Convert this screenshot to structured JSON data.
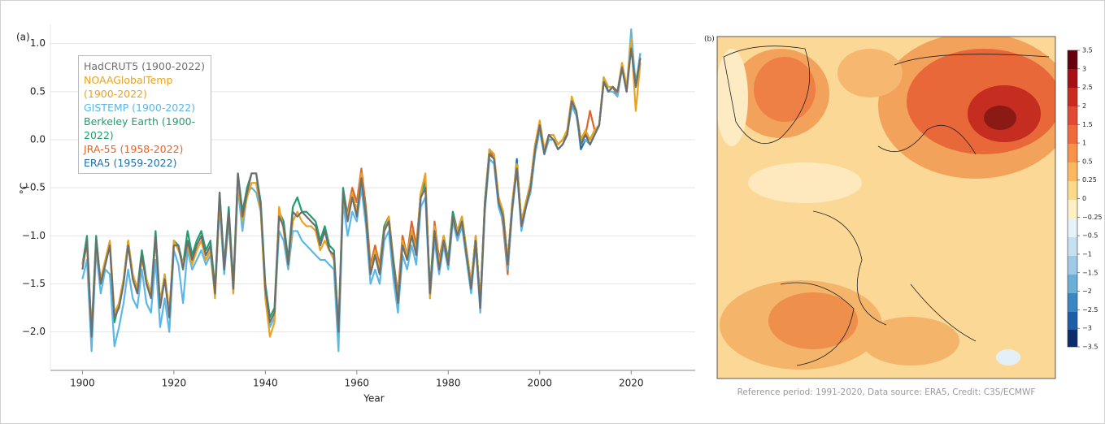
{
  "chart_data": {
    "type": "line",
    "panel_label": "(a)",
    "xlabel": "Year",
    "ylabel": "°C",
    "x": [
      1900,
      1901,
      1902,
      1903,
      1904,
      1905,
      1906,
      1907,
      1908,
      1909,
      1910,
      1911,
      1912,
      1913,
      1914,
      1915,
      1916,
      1917,
      1918,
      1919,
      1920,
      1921,
      1922,
      1923,
      1924,
      1925,
      1926,
      1927,
      1928,
      1929,
      1930,
      1931,
      1932,
      1933,
      1934,
      1935,
      1936,
      1937,
      1938,
      1939,
      1940,
      1941,
      1942,
      1943,
      1944,
      1945,
      1946,
      1947,
      1948,
      1949,
      1950,
      1951,
      1952,
      1953,
      1954,
      1955,
      1956,
      1957,
      1958,
      1959,
      1960,
      1961,
      1962,
      1963,
      1964,
      1965,
      1966,
      1967,
      1968,
      1969,
      1970,
      1971,
      1972,
      1973,
      1974,
      1975,
      1976,
      1977,
      1978,
      1979,
      1980,
      1981,
      1982,
      1983,
      1984,
      1985,
      1986,
      1987,
      1988,
      1989,
      1990,
      1991,
      1992,
      1993,
      1994,
      1995,
      1996,
      1997,
      1998,
      1999,
      2000,
      2001,
      2002,
      2003,
      2004,
      2005,
      2006,
      2007,
      2008,
      2009,
      2010,
      2011,
      2012,
      2013,
      2014,
      2015,
      2016,
      2017,
      2018,
      2019,
      2020,
      2021,
      2022
    ],
    "series": [
      {
        "name": "HadCRUT5 (1900-2022)",
        "color": "#6d6e70",
        "values": [
          -1.35,
          -1.05,
          -2.05,
          -1.05,
          -1.5,
          -1.3,
          -1.1,
          -1.85,
          -1.75,
          -1.5,
          -1.1,
          -1.45,
          -1.6,
          -1.2,
          -1.5,
          -1.65,
          -1.0,
          -1.75,
          -1.45,
          -1.85,
          -1.1,
          -1.1,
          -1.35,
          -1.05,
          -1.25,
          -1.1,
          -1.0,
          -1.2,
          -1.1,
          -1.6,
          -0.55,
          -1.35,
          -0.75,
          -1.55,
          -0.35,
          -0.8,
          -0.55,
          -0.35,
          -0.35,
          -0.7,
          -1.55,
          -1.9,
          -1.8,
          -0.8,
          -0.9,
          -1.3,
          -0.75,
          -0.8,
          -0.75,
          -0.8,
          -0.85,
          -0.9,
          -1.1,
          -0.95,
          -1.15,
          -1.2,
          -2.0,
          -0.55,
          -0.85,
          -0.6,
          -0.8,
          -0.4,
          -0.8,
          -1.4,
          -1.2,
          -1.4,
          -0.95,
          -0.85,
          -1.3,
          -1.7,
          -1.1,
          -1.25,
          -1.0,
          -1.2,
          -0.6,
          -0.5,
          -1.6,
          -0.95,
          -1.35,
          -1.05,
          -1.3,
          -0.8,
          -1.0,
          -0.85,
          -1.2,
          -1.55,
          -1.05,
          -1.75,
          -0.7,
          -0.15,
          -0.2,
          -0.65,
          -0.8,
          -1.3,
          -0.7,
          -0.3,
          -0.9,
          -0.7,
          -0.5,
          -0.1,
          0.15,
          -0.15,
          0.05,
          0.0,
          -0.1,
          -0.05,
          0.05,
          0.4,
          0.3,
          -0.05,
          0.05,
          -0.05,
          0.05,
          0.15,
          0.6,
          0.5,
          0.55,
          0.5,
          0.75,
          0.5,
          0.95,
          0.55,
          0.85
        ]
      },
      {
        "name": "NOAAGlobalTemp (1900-2022)",
        "color": "#e8a321",
        "values": [
          -1.3,
          -1.1,
          -2.0,
          -1.1,
          -1.45,
          -1.25,
          -1.05,
          -1.8,
          -1.7,
          -1.45,
          -1.05,
          -1.4,
          -1.55,
          -1.25,
          -1.45,
          -1.6,
          -1.05,
          -1.7,
          -1.4,
          -1.8,
          -1.05,
          -1.15,
          -1.3,
          -1.1,
          -1.3,
          -1.15,
          -1.05,
          -1.25,
          -1.15,
          -1.65,
          -0.65,
          -1.3,
          -0.8,
          -1.6,
          -0.4,
          -0.85,
          -0.6,
          -0.45,
          -0.45,
          -0.75,
          -1.65,
          -2.05,
          -1.9,
          -0.7,
          -0.95,
          -1.3,
          -0.85,
          -0.75,
          -0.85,
          -0.9,
          -0.9,
          -0.95,
          -1.15,
          -1.05,
          -1.15,
          -1.25,
          -1.95,
          -0.6,
          -0.8,
          -0.55,
          -0.75,
          -0.35,
          -0.8,
          -1.35,
          -1.15,
          -1.35,
          -0.95,
          -0.8,
          -1.3,
          -1.65,
          -1.05,
          -1.2,
          -0.95,
          -1.15,
          -0.55,
          -0.35,
          -1.65,
          -0.9,
          -1.3,
          -1.0,
          -1.3,
          -0.8,
          -0.95,
          -0.8,
          -1.15,
          -1.5,
          -1.0,
          -1.7,
          -0.7,
          -0.1,
          -0.15,
          -0.6,
          -0.75,
          -1.25,
          -0.65,
          -0.25,
          -0.85,
          -0.65,
          -0.45,
          -0.05,
          0.2,
          -0.1,
          0.05,
          0.05,
          -0.05,
          0.0,
          0.1,
          0.45,
          0.3,
          0.0,
          0.1,
          0.0,
          0.1,
          0.15,
          0.65,
          0.55,
          0.55,
          0.5,
          0.8,
          0.55,
          1.05,
          0.3,
          0.8
        ]
      },
      {
        "name": "GISTEMP (1900-2022)",
        "color": "#5bb8e6",
        "values": [
          -1.45,
          -1.25,
          -2.2,
          -1.15,
          -1.6,
          -1.35,
          -1.4,
          -2.15,
          -1.95,
          -1.7,
          -1.35,
          -1.65,
          -1.75,
          -1.35,
          -1.7,
          -1.8,
          -1.25,
          -1.95,
          -1.65,
          -2.0,
          -1.15,
          -1.3,
          -1.7,
          -1.15,
          -1.35,
          -1.25,
          -1.15,
          -1.3,
          -1.2,
          -1.6,
          -0.7,
          -1.4,
          -0.85,
          -1.6,
          -0.5,
          -0.95,
          -0.55,
          -0.5,
          -0.55,
          -0.75,
          -1.6,
          -1.95,
          -1.85,
          -0.95,
          -1.05,
          -1.35,
          -0.95,
          -0.95,
          -1.05,
          -1.1,
          -1.15,
          -1.2,
          -1.25,
          -1.25,
          -1.3,
          -1.35,
          -2.2,
          -0.65,
          -1.0,
          -0.75,
          -0.85,
          -0.5,
          -0.9,
          -1.5,
          -1.35,
          -1.5,
          -1.05,
          -0.95,
          -1.45,
          -1.8,
          -1.2,
          -1.35,
          -1.1,
          -1.3,
          -0.7,
          -0.6,
          -1.65,
          -1.05,
          -1.4,
          -1.1,
          -1.35,
          -0.85,
          -1.05,
          -0.9,
          -1.25,
          -1.6,
          -1.1,
          -1.8,
          -0.75,
          -0.2,
          -0.25,
          -0.7,
          -0.85,
          -1.35,
          -0.75,
          -0.3,
          -0.95,
          -0.7,
          -0.55,
          -0.15,
          0.1,
          -0.15,
          0.0,
          0.0,
          -0.1,
          -0.05,
          0.05,
          0.35,
          0.25,
          -0.05,
          0.0,
          -0.05,
          0.05,
          0.15,
          0.6,
          0.5,
          0.5,
          0.45,
          0.75,
          0.5,
          1.15,
          0.55,
          0.9
        ]
      },
      {
        "name": "Berkeley Earth (1900-2022)",
        "color": "#1f9e6e",
        "values": [
          -1.3,
          -1.0,
          -2.0,
          -1.0,
          -1.5,
          -1.3,
          -1.1,
          -1.9,
          -1.7,
          -1.45,
          -1.05,
          -1.4,
          -1.55,
          -1.15,
          -1.45,
          -1.6,
          -0.95,
          -1.7,
          -1.4,
          -1.8,
          -1.05,
          -1.1,
          -1.3,
          -0.95,
          -1.2,
          -1.05,
          -0.95,
          -1.15,
          -1.05,
          -1.55,
          -0.55,
          -1.3,
          -0.7,
          -1.5,
          -0.35,
          -0.75,
          -0.5,
          -0.35,
          -0.35,
          -0.65,
          -1.5,
          -1.85,
          -1.75,
          -0.75,
          -0.85,
          -1.25,
          -0.7,
          -0.6,
          -0.75,
          -0.75,
          -0.8,
          -0.85,
          -1.05,
          -0.9,
          -1.1,
          -1.15,
          -1.95,
          -0.5,
          -0.8,
          -0.55,
          -0.75,
          -0.4,
          -0.75,
          -1.35,
          -1.15,
          -1.35,
          -0.9,
          -0.8,
          -1.25,
          -1.65,
          -1.05,
          -1.2,
          -0.95,
          -1.15,
          -0.55,
          -0.45,
          -1.55,
          -0.9,
          -1.3,
          -1.0,
          -1.25,
          -0.75,
          -0.95,
          -0.8,
          -1.15,
          -1.5,
          -1.0,
          -1.7,
          -0.65,
          -0.1,
          -0.15,
          -0.6,
          -0.75,
          -1.25,
          -0.65,
          -0.25,
          -0.85,
          -0.65,
          -0.45,
          -0.05,
          0.15,
          -0.15,
          0.05,
          0.05,
          -0.05,
          0.0,
          0.05,
          0.4,
          0.3,
          0.0,
          0.05,
          0.0,
          0.1,
          0.15,
          0.65,
          0.5,
          0.55,
          0.5,
          0.75,
          0.55,
          1.0,
          0.6,
          0.85
        ]
      },
      {
        "name": "JRA-55 (1958-2022)",
        "color": "#e0652b",
        "values": [
          null,
          null,
          null,
          null,
          null,
          null,
          null,
          null,
          null,
          null,
          null,
          null,
          null,
          null,
          null,
          null,
          null,
          null,
          null,
          null,
          null,
          null,
          null,
          null,
          null,
          null,
          null,
          null,
          null,
          null,
          null,
          null,
          null,
          null,
          null,
          null,
          null,
          null,
          null,
          null,
          null,
          null,
          null,
          null,
          null,
          null,
          null,
          null,
          null,
          null,
          null,
          null,
          null,
          null,
          null,
          null,
          null,
          null,
          -0.75,
          -0.5,
          -0.65,
          -0.3,
          -0.7,
          -1.3,
          -1.1,
          -1.3,
          -0.9,
          -0.8,
          -1.25,
          -1.6,
          -1.0,
          -1.2,
          -0.85,
          -1.1,
          -0.55,
          -0.4,
          -1.6,
          -0.85,
          -1.25,
          -1.0,
          -1.25,
          -0.75,
          -0.95,
          -0.85,
          -1.15,
          -1.5,
          -1.0,
          -1.7,
          -0.65,
          -0.1,
          -0.2,
          -0.6,
          -0.9,
          -1.4,
          -0.7,
          -0.3,
          -0.85,
          -0.65,
          -0.45,
          -0.05,
          0.15,
          -0.1,
          0.05,
          0.0,
          -0.05,
          0.0,
          0.05,
          0.4,
          0.3,
          0.0,
          0.05,
          0.3,
          0.1,
          0.15,
          0.6,
          0.5,
          0.55,
          0.45,
          0.75,
          0.5,
          1.0,
          0.55,
          0.8
        ]
      },
      {
        "name": "ERA5 (1959-2022)",
        "color": "#1f6fa8",
        "values": [
          null,
          null,
          null,
          null,
          null,
          null,
          null,
          null,
          null,
          null,
          null,
          null,
          null,
          null,
          null,
          null,
          null,
          null,
          null,
          null,
          null,
          null,
          null,
          null,
          null,
          null,
          null,
          null,
          null,
          null,
          null,
          null,
          null,
          null,
          null,
          null,
          null,
          null,
          null,
          null,
          null,
          null,
          null,
          null,
          null,
          null,
          null,
          null,
          null,
          null,
          null,
          null,
          null,
          null,
          null,
          null,
          null,
          null,
          null,
          -0.55,
          -0.75,
          -0.4,
          -0.8,
          -1.4,
          -1.2,
          -1.4,
          -0.95,
          -0.85,
          -1.3,
          -1.7,
          -1.0,
          -1.25,
          -0.95,
          -1.2,
          -0.6,
          -0.5,
          -1.6,
          -0.95,
          -1.35,
          -1.05,
          -1.3,
          -0.8,
          -1.0,
          -0.85,
          -1.2,
          -1.55,
          -1.05,
          -1.75,
          -0.7,
          -0.15,
          -0.2,
          -0.65,
          -0.8,
          -1.35,
          -0.7,
          -0.2,
          -0.9,
          -0.7,
          -0.5,
          -0.1,
          0.1,
          -0.15,
          0.0,
          0.0,
          -0.1,
          -0.05,
          0.05,
          0.35,
          0.3,
          -0.1,
          0.0,
          -0.05,
          0.05,
          0.15,
          0.6,
          0.5,
          0.55,
          0.45,
          0.75,
          0.5,
          1.0,
          0.55,
          0.9
        ]
      }
    ],
    "xlim": [
      1893,
      2034
    ],
    "xticks": [
      1900,
      1920,
      1940,
      1960,
      1980,
      2000,
      2020
    ],
    "ylim": [
      -2.4,
      1.2
    ],
    "yticks": [
      {
        "value": -2.0,
        "label": "−2.0"
      },
      {
        "value": -1.5,
        "label": "−1.5"
      },
      {
        "value": -1.0,
        "label": "−1.0"
      },
      {
        "value": -0.5,
        "label": "−0.5"
      },
      {
        "value": 0,
        "label": "0.0"
      },
      {
        "value": 0.5,
        "label": "0.5"
      },
      {
        "value": 1.0,
        "label": "1.0"
      }
    ],
    "grid": true,
    "legend": "upper left"
  },
  "map": {
    "panel_label": "(b)",
    "caption": "Reference period: 1991-2020, Data source: ERA5, Credit: C3S/ECMWF",
    "colorbar_labels": [
      "3.5",
      "3",
      "2.5",
      "2",
      "1.5",
      "1",
      "0.5",
      "0.25",
      "0",
      "−0.25",
      "−0.5",
      "−1",
      "−1.5",
      "−2",
      "−2.5",
      "−3",
      "−3.5"
    ]
  }
}
